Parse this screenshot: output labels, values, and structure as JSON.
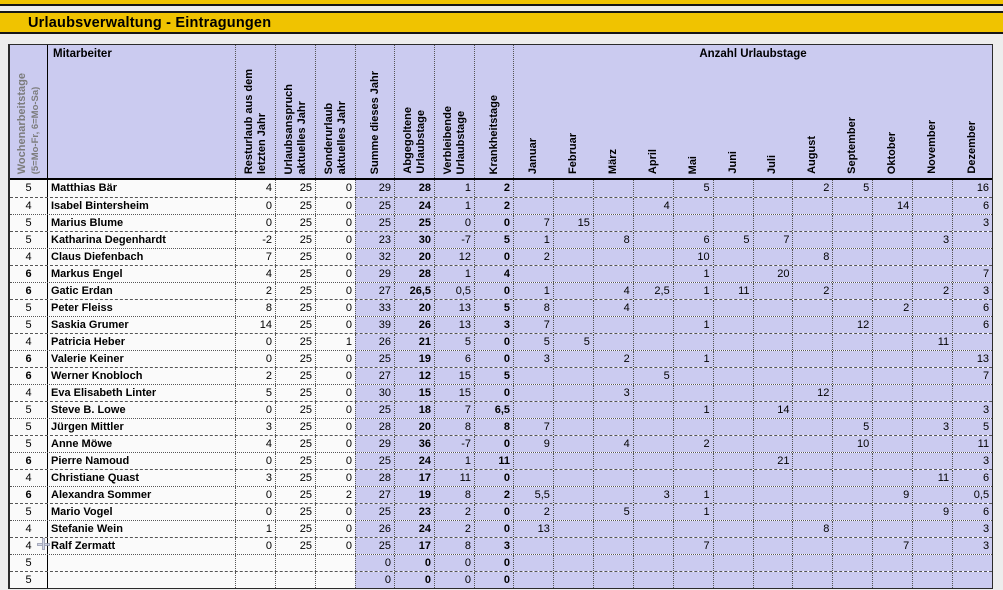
{
  "title": "Urlaubsverwaltung - Eintragungen",
  "table": {
    "headers": {
      "wochenarbeitstage": "Wochenarbeitstage",
      "wochenarbeitstage_sub": "(5=Mo-Fr, 6=Mo-Sa)",
      "mitarbeiter": "Mitarbeiter",
      "resturlaub_l1": "Resturlaub aus dem",
      "resturlaub_l2": "letzten Jahr",
      "urlaubsanspruch_l1": "Urlaubsanspruch",
      "urlaubsanspruch_l2": "aktuelles Jahr",
      "sonderurlaub_l1": "Sonderurlaub",
      "sonderurlaub_l2": "aktuelles Jahr",
      "summe": "Summe dieses Jahr",
      "abgegolten_l1": "Abgegoltene",
      "abgegolten_l2": "Urlaubstage",
      "verbleibend_l1": "Verbleibende",
      "verbleibend_l2": "Urlaubstage",
      "krankheitstage": "Krankheitstage",
      "months_group": "Anzahl Urlaubstage"
    },
    "months": [
      "Januar",
      "Februar",
      "März",
      "April",
      "Mai",
      "Juni",
      "Juli",
      "August",
      "September",
      "Oktober",
      "November",
      "Dezember"
    ],
    "rows": [
      {
        "w": "5",
        "name": "Matthias Bär",
        "rest": "4",
        "ansp": "25",
        "sond": "0",
        "sum": "29",
        "abg": "28",
        "verb": "1",
        "krank": "2",
        "m": [
          "",
          "",
          "",
          "",
          "5",
          "",
          "",
          "2",
          "5",
          "",
          "",
          "16"
        ]
      },
      {
        "w": "4",
        "name": "Isabel Bintersheim",
        "rest": "0",
        "ansp": "25",
        "sond": "0",
        "sum": "25",
        "abg": "24",
        "verb": "1",
        "krank": "2",
        "m": [
          "",
          "",
          "",
          "4",
          "",
          "",
          "",
          "",
          "",
          "14",
          "",
          "6"
        ]
      },
      {
        "w": "5",
        "name": "Marius Blume",
        "rest": "0",
        "ansp": "25",
        "sond": "0",
        "sum": "25",
        "abg": "25",
        "verb": "0",
        "krank": "0",
        "m": [
          "7",
          "15",
          "",
          "",
          "",
          "",
          "",
          "",
          "",
          "",
          "",
          "3"
        ]
      },
      {
        "w": "5",
        "name": "Katharina Degenhardt",
        "rest": "-2",
        "ansp": "25",
        "sond": "0",
        "sum": "23",
        "abg": "30",
        "verb": "-7",
        "krank": "5",
        "m": [
          "1",
          "",
          "8",
          "",
          "6",
          "5",
          "7",
          "",
          "",
          "",
          "3",
          ""
        ]
      },
      {
        "w": "4",
        "name": "Claus Diefenbach",
        "rest": "7",
        "ansp": "25",
        "sond": "0",
        "sum": "32",
        "abg": "20",
        "verb": "12",
        "krank": "0",
        "m": [
          "2",
          "",
          "",
          "",
          "10",
          "",
          "",
          "8",
          "",
          "",
          "",
          ""
        ]
      },
      {
        "w": "6",
        "name": "Markus Engel",
        "rest": "4",
        "ansp": "25",
        "sond": "0",
        "sum": "29",
        "abg": "28",
        "verb": "1",
        "krank": "4",
        "m": [
          "",
          "",
          "",
          "",
          "1",
          "",
          "20",
          "",
          "",
          "",
          "",
          "7"
        ]
      },
      {
        "w": "6",
        "name": "Gatic Erdan",
        "rest": "2",
        "ansp": "25",
        "sond": "0",
        "sum": "27",
        "abg": "26,5",
        "verb": "0,5",
        "krank": "0",
        "m": [
          "1",
          "",
          "4",
          "2,5",
          "1",
          "11",
          "",
          "2",
          "",
          "",
          "2",
          "3"
        ]
      },
      {
        "w": "5",
        "name": "Peter Fleiss",
        "rest": "8",
        "ansp": "25",
        "sond": "0",
        "sum": "33",
        "abg": "20",
        "verb": "13",
        "krank": "5",
        "m": [
          "8",
          "",
          "4",
          "",
          "",
          "",
          "",
          "",
          "",
          "2",
          "",
          "6"
        ]
      },
      {
        "w": "5",
        "name": "Saskia Grumer",
        "rest": "14",
        "ansp": "25",
        "sond": "0",
        "sum": "39",
        "abg": "26",
        "verb": "13",
        "krank": "3",
        "m": [
          "7",
          "",
          "",
          "",
          "1",
          "",
          "",
          "",
          "12",
          "",
          "",
          "6"
        ]
      },
      {
        "w": "4",
        "name": "Patricia Heber",
        "rest": "0",
        "ansp": "25",
        "sond": "1",
        "sum": "26",
        "abg": "21",
        "verb": "5",
        "krank": "0",
        "m": [
          "5",
          "5",
          "",
          "",
          "",
          "",
          "",
          "",
          "",
          "",
          "11",
          ""
        ]
      },
      {
        "w": "6",
        "name": "Valerie Keiner",
        "rest": "0",
        "ansp": "25",
        "sond": "0",
        "sum": "25",
        "abg": "19",
        "verb": "6",
        "krank": "0",
        "m": [
          "3",
          "",
          "2",
          "",
          "1",
          "",
          "",
          "",
          "",
          "",
          "",
          "13"
        ]
      },
      {
        "w": "6",
        "name": "Werner Knobloch",
        "rest": "2",
        "ansp": "25",
        "sond": "0",
        "sum": "27",
        "abg": "12",
        "verb": "15",
        "krank": "5",
        "m": [
          "",
          "",
          "",
          "5",
          "",
          "",
          "",
          "",
          "",
          "",
          "",
          "7"
        ]
      },
      {
        "w": "4",
        "name": "Eva Elisabeth Linter",
        "rest": "5",
        "ansp": "25",
        "sond": "0",
        "sum": "30",
        "abg": "15",
        "verb": "15",
        "krank": "0",
        "m": [
          "",
          "",
          "3",
          "",
          "",
          "",
          "",
          "12",
          "",
          "",
          "",
          ""
        ]
      },
      {
        "w": "5",
        "name": "Steve B. Lowe",
        "rest": "0",
        "ansp": "25",
        "sond": "0",
        "sum": "25",
        "abg": "18",
        "verb": "7",
        "krank": "6,5",
        "m": [
          "",
          "",
          "",
          "",
          "1",
          "",
          "14",
          "",
          "",
          "",
          "",
          "3"
        ]
      },
      {
        "w": "5",
        "name": "Jürgen Mittler",
        "rest": "3",
        "ansp": "25",
        "sond": "0",
        "sum": "28",
        "abg": "20",
        "verb": "8",
        "krank": "8",
        "m": [
          "7",
          "",
          "",
          "",
          "",
          "",
          "",
          "",
          "5",
          "",
          "3",
          "5"
        ]
      },
      {
        "w": "5",
        "name": "Anne Möwe",
        "rest": "4",
        "ansp": "25",
        "sond": "0",
        "sum": "29",
        "abg": "36",
        "verb": "-7",
        "krank": "0",
        "m": [
          "9",
          "",
          "4",
          "",
          "2",
          "",
          "",
          "",
          "10",
          "",
          "",
          "11"
        ]
      },
      {
        "w": "6",
        "name": "Pierre Namoud",
        "rest": "0",
        "ansp": "25",
        "sond": "0",
        "sum": "25",
        "abg": "24",
        "verb": "1",
        "krank": "11",
        "m": [
          "",
          "",
          "",
          "",
          "",
          "",
          "21",
          "",
          "",
          "",
          "",
          "3"
        ]
      },
      {
        "w": "4",
        "name": "Christiane Quast",
        "rest": "3",
        "ansp": "25",
        "sond": "0",
        "sum": "28",
        "abg": "17",
        "verb": "11",
        "krank": "0",
        "m": [
          "",
          "",
          "",
          "",
          "",
          "",
          "",
          "",
          "",
          "",
          "11",
          "6"
        ]
      },
      {
        "w": "6",
        "name": "Alexandra Sommer",
        "rest": "0",
        "ansp": "25",
        "sond": "2",
        "sum": "27",
        "abg": "19",
        "verb": "8",
        "krank": "2",
        "m": [
          "5,5",
          "",
          "",
          "3",
          "1",
          "",
          "",
          "",
          "",
          "9",
          "",
          "0,5"
        ]
      },
      {
        "w": "5",
        "name": "Mario Vogel",
        "rest": "0",
        "ansp": "25",
        "sond": "0",
        "sum": "25",
        "abg": "23",
        "verb": "2",
        "krank": "0",
        "m": [
          "2",
          "",
          "5",
          "",
          "1",
          "",
          "",
          "",
          "",
          "",
          "9",
          "6"
        ]
      },
      {
        "w": "4",
        "name": "Stefanie Wein",
        "rest": "1",
        "ansp": "25",
        "sond": "0",
        "sum": "26",
        "abg": "24",
        "verb": "2",
        "krank": "0",
        "m": [
          "13",
          "",
          "",
          "",
          "",
          "",
          "",
          "8",
          "",
          "",
          "",
          "3"
        ]
      },
      {
        "w": "4",
        "name": "Ralf Zermatt",
        "rest": "0",
        "ansp": "25",
        "sond": "0",
        "sum": "25",
        "abg": "17",
        "verb": "8",
        "krank": "3",
        "m": [
          "",
          "",
          "",
          "",
          "7",
          "",
          "",
          "",
          "",
          "7",
          "",
          "3"
        ]
      },
      {
        "w": "5",
        "name": "",
        "rest": "",
        "ansp": "",
        "sond": "",
        "sum": "0",
        "abg": "0",
        "verb": "0",
        "krank": "0",
        "m": [
          "",
          "",
          "",
          "",
          "",
          "",
          "",
          "",
          "",
          "",
          "",
          ""
        ]
      },
      {
        "w": "5",
        "name": "",
        "rest": "",
        "ansp": "",
        "sond": "",
        "sum": "0",
        "abg": "0",
        "verb": "0",
        "krank": "0",
        "m": [
          "",
          "",
          "",
          "",
          "",
          "",
          "",
          "",
          "",
          "",
          "",
          ""
        ]
      }
    ]
  },
  "colors": {
    "title_bg": "#f0c300",
    "header_bg": "#cbcbf0",
    "month_cell_bg": "#cbcbf0",
    "left_cell_bg": "#fafafa"
  }
}
